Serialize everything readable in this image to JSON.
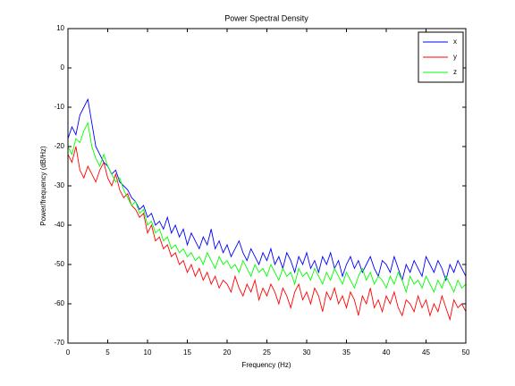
{
  "chart_data": {
    "type": "line",
    "title": "Power Spectral Density",
    "xlabel": "Frequency (Hz)",
    "ylabel": "Power/frequency (dB/Hz)",
    "x": [
      0,
      0.5,
      1,
      1.5,
      2,
      2.5,
      3,
      3.5,
      4,
      4.5,
      5,
      5.5,
      6,
      6.5,
      7,
      7.5,
      8,
      8.5,
      9,
      9.5,
      10,
      10.5,
      11,
      11.5,
      12,
      12.5,
      13,
      13.5,
      14,
      14.5,
      15,
      15.5,
      16,
      16.5,
      17,
      17.5,
      18,
      18.5,
      19,
      19.5,
      20,
      20.5,
      21,
      21.5,
      22,
      22.5,
      23,
      23.5,
      24,
      24.5,
      25,
      25.5,
      26,
      26.5,
      27,
      27.5,
      28,
      28.5,
      29,
      29.5,
      30,
      30.5,
      31,
      31.5,
      32,
      32.5,
      33,
      33.5,
      34,
      34.5,
      35,
      35.5,
      36,
      36.5,
      37,
      37.5,
      38,
      38.5,
      39,
      39.5,
      40,
      40.5,
      41,
      41.5,
      42,
      42.5,
      43,
      43.5,
      44,
      44.5,
      45,
      45.5,
      46,
      46.5,
      47,
      47.5,
      48,
      48.5,
      49,
      49.5,
      50
    ],
    "series": [
      {
        "name": "x",
        "color": "#0000ff",
        "values": [
          -18,
          -15,
          -17,
          -12,
          -10,
          -8,
          -14,
          -20,
          -22,
          -24,
          -25,
          -27,
          -26,
          -29,
          -30,
          -31,
          -33,
          -34,
          -36,
          -35,
          -38,
          -37,
          -40,
          -39,
          -41,
          -38,
          -42,
          -40,
          -43,
          -41,
          -45,
          -42,
          -44,
          -46,
          -43,
          -45,
          -41,
          -46,
          -44,
          -47,
          -45,
          -48,
          -46,
          -44,
          -47,
          -49,
          -46,
          -48,
          -50,
          -47,
          -49,
          -46,
          -50,
          -48,
          -51,
          -47,
          -49,
          -52,
          -48,
          -50,
          -47,
          -51,
          -49,
          -52,
          -48,
          -50,
          -47,
          -51,
          -49,
          -53,
          -50,
          -48,
          -51,
          -49,
          -52,
          -50,
          -48,
          -51,
          -53,
          -49,
          -50,
          -52,
          -48,
          -51,
          -54,
          -50,
          -52,
          -49,
          -51,
          -53,
          -48,
          -50,
          -52,
          -49,
          -51,
          -54,
          -50,
          -52,
          -49,
          -51,
          -53
        ]
      },
      {
        "name": "y",
        "color": "#ff0000",
        "values": [
          -22,
          -24,
          -20,
          -26,
          -28,
          -25,
          -27,
          -29,
          -26,
          -24,
          -28,
          -30,
          -27,
          -31,
          -33,
          -32,
          -35,
          -36,
          -38,
          -37,
          -42,
          -40,
          -44,
          -43,
          -46,
          -45,
          -48,
          -47,
          -50,
          -49,
          -52,
          -50,
          -53,
          -51,
          -54,
          -52,
          -55,
          -53,
          -56,
          -54,
          -55,
          -57,
          -53,
          -56,
          -58,
          -55,
          -57,
          -54,
          -59,
          -56,
          -58,
          -55,
          -57,
          -60,
          -56,
          -58,
          -61,
          -57,
          -55,
          -59,
          -57,
          -60,
          -56,
          -58,
          -62,
          -57,
          -59,
          -56,
          -60,
          -58,
          -61,
          -57,
          -59,
          -63,
          -58,
          -60,
          -56,
          -61,
          -59,
          -62,
          -58,
          -60,
          -57,
          -61,
          -63,
          -59,
          -60,
          -62,
          -58,
          -61,
          -59,
          -63,
          -60,
          -62,
          -58,
          -61,
          -64,
          -59,
          -61,
          -60,
          -62
        ]
      },
      {
        "name": "z",
        "color": "#00ff00",
        "values": [
          -20,
          -22,
          -18,
          -19,
          -16,
          -14,
          -20,
          -23,
          -25,
          -22,
          -25,
          -27,
          -29,
          -28,
          -31,
          -33,
          -35,
          -34,
          -37,
          -36,
          -40,
          -39,
          -42,
          -41,
          -44,
          -43,
          -46,
          -45,
          -47,
          -46,
          -48,
          -47,
          -49,
          -48,
          -50,
          -47,
          -49,
          -51,
          -48,
          -50,
          -49,
          -51,
          -50,
          -52,
          -49,
          -51,
          -53,
          -50,
          -52,
          -51,
          -53,
          -50,
          -52,
          -54,
          -51,
          -53,
          -52,
          -55,
          -51,
          -53,
          -52,
          -54,
          -51,
          -53,
          -55,
          -52,
          -54,
          -51,
          -53,
          -55,
          -52,
          -54,
          -56,
          -53,
          -51,
          -54,
          -52,
          -55,
          -53,
          -54,
          -56,
          -53,
          -55,
          -52,
          -54,
          -57,
          -53,
          -55,
          -54,
          -56,
          -53,
          -55,
          -57,
          -54,
          -56,
          -53,
          -55,
          -57,
          -54,
          -56,
          -55
        ]
      }
    ],
    "xlim": [
      0,
      50
    ],
    "xticks": [
      0,
      5,
      10,
      15,
      20,
      25,
      30,
      35,
      40,
      45,
      50
    ],
    "ylim": [
      -70,
      10
    ],
    "yticks": [
      -70,
      -60,
      -50,
      -40,
      -30,
      -20,
      -10,
      0,
      10
    ],
    "legend": "upper right"
  }
}
